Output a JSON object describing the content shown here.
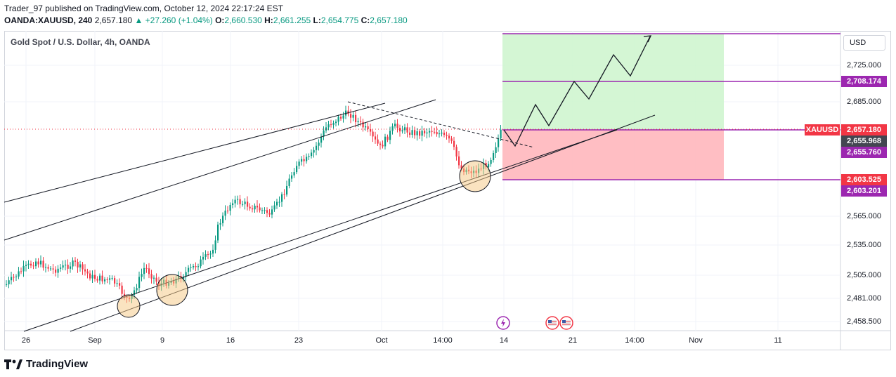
{
  "header": {
    "publish_line": "Trader_97 published on TradingView.com, October 12, 2024 22:17:24 EST",
    "symbol": "OANDA:XAUUSD, 240",
    "last": "2,657.180",
    "change": "▲ +27.260 (+1.04%)",
    "o_key": "O:",
    "o": "2,660.530",
    "h_key": "H:",
    "h": "2,661.255",
    "l_key": "L:",
    "l": "2,654.775",
    "c_key": "C:",
    "c": "2,657.180"
  },
  "chart": {
    "title": "Gold Spot / U.S. Dollar, 4h, OANDA",
    "currency": "USD",
    "ticker_tag": "XAUUSD",
    "y_ticks": [
      "2,725.000",
      "2,685.000",
      "2,565.000",
      "2,535.000",
      "2,505.000",
      "2,481.000",
      "2,458.500"
    ],
    "x_ticks": [
      "26",
      "Sep",
      "9",
      "16",
      "23",
      "Oct",
      "14:00",
      "14",
      "21",
      "14:00",
      "Nov",
      "11"
    ],
    "price_labels": {
      "target": "2,708.174",
      "current": "2,657.180",
      "mid": "2,655.968",
      "entry": "2,655.760",
      "stop_red": "2,603.525",
      "stop_purple": "2,603.201"
    },
    "colors": {
      "up": "#089981",
      "down": "#f23645",
      "profit_zone": "#ccf5cc",
      "loss_zone": "#ffb3b8",
      "level_line": "#9c27b0"
    }
  },
  "footer": {
    "brand": "TradingView"
  },
  "chart_data": {
    "type": "candlestick",
    "ylim": [
      2450,
      2760
    ],
    "levels": {
      "target": 2708.174,
      "entry": 2655.76,
      "stop": 2603.525
    }
  }
}
